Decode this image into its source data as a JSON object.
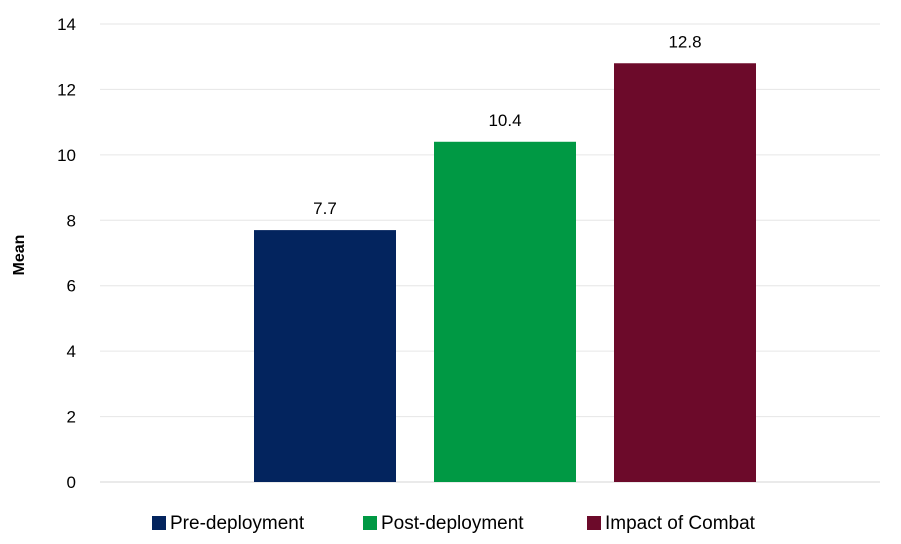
{
  "chart_data": {
    "type": "bar",
    "title": "",
    "xlabel": "",
    "ylabel": "Mean",
    "ylim": [
      0,
      14
    ],
    "y_ticks": [
      0,
      2,
      4,
      6,
      8,
      10,
      12,
      14
    ],
    "grid": true,
    "legend_position": "bottom",
    "series": [
      {
        "name": "Pre-deployment",
        "values": [
          7.7
        ],
        "color": "#03245e"
      },
      {
        "name": "Post-deployment",
        "values": [
          10.4
        ],
        "color": "#009944"
      },
      {
        "name": "Impact of Combat",
        "values": [
          12.8
        ],
        "color": "#6c0a2a"
      }
    ],
    "data_labels": [
      "7.7",
      "10.4",
      "12.8"
    ]
  }
}
